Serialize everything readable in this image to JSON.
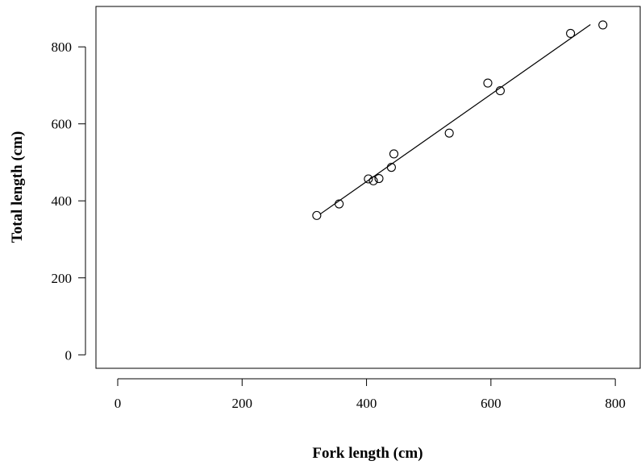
{
  "chart_data": {
    "type": "scatter",
    "xlabel": "Fork length (cm)",
    "ylabel": "Total length (cm)",
    "xlim": [
      -35,
      840
    ],
    "ylim": [
      -35,
      905
    ],
    "xticks": [
      0,
      200,
      400,
      600,
      800
    ],
    "yticks": [
      0,
      200,
      400,
      600,
      800
    ],
    "grid": false,
    "points": [
      {
        "x": 320,
        "y": 362
      },
      {
        "x": 356,
        "y": 392
      },
      {
        "x": 403,
        "y": 457
      },
      {
        "x": 411,
        "y": 452
      },
      {
        "x": 420,
        "y": 458
      },
      {
        "x": 440,
        "y": 487
      },
      {
        "x": 444,
        "y": 522
      },
      {
        "x": 533,
        "y": 576
      },
      {
        "x": 595,
        "y": 706
      },
      {
        "x": 615,
        "y": 686
      },
      {
        "x": 728,
        "y": 835
      },
      {
        "x": 780,
        "y": 857
      }
    ],
    "fit_line": {
      "x": [
        325,
        760
      ],
      "y": [
        365,
        858
      ]
    }
  }
}
